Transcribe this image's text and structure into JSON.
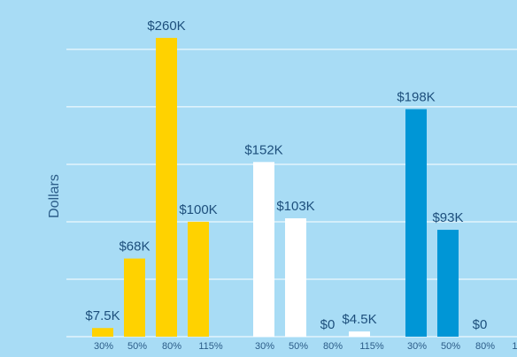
{
  "chart_data": {
    "type": "bar",
    "y_label": "Dollars",
    "categories": [
      "30%",
      "50%",
      "80%",
      "115%"
    ],
    "series": [
      {
        "color": "#ffd200",
        "values": [
          7500,
          68000,
          260000,
          100000
        ],
        "value_labels": [
          "$7.5K",
          "$68K",
          "$260K",
          "$100K"
        ]
      },
      {
        "color": "#ffffff",
        "values": [
          152000,
          103000,
          0,
          4500
        ],
        "value_labels": [
          "$152K",
          "$103K",
          "$0",
          "$4.5K"
        ]
      },
      {
        "color": "#0096d6",
        "values": [
          198000,
          93000,
          0,
          null
        ],
        "value_labels": [
          "$198K",
          "$93K",
          "$0",
          null
        ]
      }
    ],
    "ylim": [
      -17700,
      293000
    ],
    "yticks": [
      0,
      50000,
      100000,
      150000,
      200000,
      250000
    ],
    "grid": true
  }
}
